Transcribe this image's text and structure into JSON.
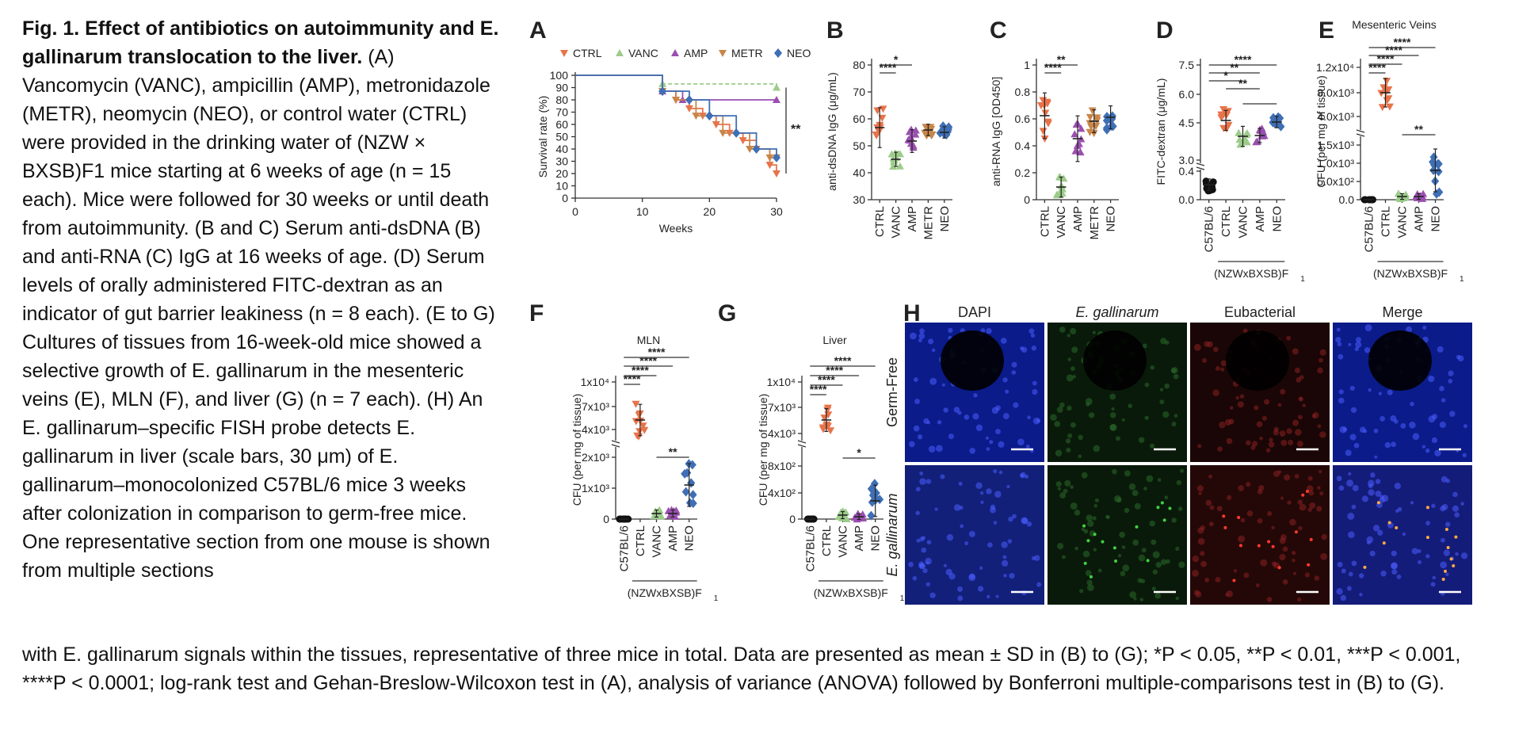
{
  "caption": {
    "title": "Fig. 1. Effect of antibiotics on autoimmunity and E. gallinarum translocation to the liver.",
    "body": "(A) Vancomycin (VANC), ampicillin (AMP), metronidazole (METR), neomycin (NEO), or control water (CTRL) were provided in the drinking water of (NZW × BXSB)F1 mice starting at 6 weeks of age (n = 15 each). Mice were followed for 30 weeks or until death from autoimmunity. (B and C) Serum anti-dsDNA (B) and anti-RNA (C) IgG at 16 weeks of age. (D) Serum levels of orally administered FITC-dextran as an indicator of gut barrier leakiness (n = 8 each). (E to G) Cultures of tissues from 16-week-old mice showed a selective growth of E. gallinarum in the mesenteric veins (E), MLN (F), and liver (G) (n = 7 each). (H) An E. gallinarum–specific FISH probe detects E. gallinarum in liver (scale bars, 30 μm) of E. gallinarum–monocolonized C57BL/6 mice 3 weeks after colonization in comparison to germ-free mice. One representative section from one mouse is shown from multiple sections",
    "bottom": "with E. gallinarum signals within the tissues, representative of three mice in total. Data are presented as mean ± SD in (B) to (G); *P < 0.05, **P < 0.01, ***P < 0.001, ****P < 0.0001; log-rank test and Gehan-Breslow-Wilcoxon test in (A), analysis of variance (ANOVA) followed by Bonferroni multiple-comparisons test in (B) to (G)."
  },
  "colors": {
    "CTRL": "#e8734a",
    "VANC": "#9ccc8a",
    "AMP": "#9b4fb0",
    "METR": "#c8864a",
    "NEO": "#3f6fb5"
  },
  "chart_data": [
    {
      "panel": "A",
      "type": "line",
      "xlabel": "Weeks",
      "ylabel": "Survival rate (%)",
      "xlim": [
        0,
        30
      ],
      "ylim": [
        0,
        100
      ],
      "xticks": [
        0,
        10,
        20,
        30
      ],
      "yticks": [
        0,
        10,
        20,
        30,
        40,
        50,
        60,
        70,
        80,
        90,
        100
      ],
      "annotation": "**",
      "series": [
        {
          "name": "CTRL",
          "x": [
            0,
            13,
            15,
            17,
            19,
            21,
            23,
            25,
            27,
            29,
            30
          ],
          "y": [
            100,
            87,
            80,
            73,
            67,
            60,
            53,
            47,
            40,
            27,
            20
          ]
        },
        {
          "name": "VANC",
          "x": [
            0,
            13,
            30
          ],
          "y": [
            100,
            93,
            90
          ]
        },
        {
          "name": "AMP",
          "x": [
            0,
            13,
            16,
            30
          ],
          "y": [
            100,
            87,
            80,
            80
          ]
        },
        {
          "name": "METR",
          "x": [
            0,
            13,
            15,
            18,
            22,
            26,
            29,
            30
          ],
          "y": [
            100,
            87,
            80,
            67,
            53,
            40,
            33,
            33
          ]
        },
        {
          "name": "NEO",
          "x": [
            0,
            13,
            17,
            20,
            24,
            27,
            30
          ],
          "y": [
            100,
            87,
            80,
            67,
            53,
            40,
            33
          ]
        }
      ]
    },
    {
      "panel": "B",
      "type": "scatter",
      "ylabel": "anti-dsDNA IgG (μg/mL)",
      "ylim": [
        30,
        80
      ],
      "yticks": [
        30,
        40,
        50,
        60,
        70,
        80
      ],
      "categories": [
        "CTRL",
        "VANC",
        "AMP",
        "METR",
        "NEO"
      ],
      "means": [
        56,
        43,
        50,
        55,
        54
      ],
      "sd": [
        9,
        3,
        5,
        2,
        2
      ],
      "significance": [
        "****",
        "*"
      ]
    },
    {
      "panel": "C",
      "type": "scatter",
      "ylabel": "anti-RNA IgG [OD450]",
      "ylim": [
        0,
        1.0
      ],
      "yticks": [
        0.0,
        0.2,
        0.4,
        0.6,
        0.8,
        1.0
      ],
      "categories": [
        "CTRL",
        "VANC",
        "AMP",
        "METR",
        "NEO"
      ],
      "means": [
        0.62,
        0.1,
        0.45,
        0.58,
        0.61
      ],
      "sd": [
        0.17,
        0.08,
        0.17,
        0.1,
        0.1
      ],
      "significance": [
        "****",
        "**"
      ]
    },
    {
      "panel": "D",
      "type": "scatter",
      "ylabel": "FITC-dextran (μg/mL)",
      "ylim": [
        0,
        7.5
      ],
      "yticks": [
        "0.0",
        "0.4",
        "3.0",
        "4.5",
        "6.0",
        "7.5"
      ],
      "categories": [
        "C57BL/6",
        "CTRL",
        "VANC",
        "AMP",
        "NEO"
      ],
      "group_label": "(NZWxBXSB)F1",
      "means": [
        0.15,
        5.0,
        4.1,
        4.2,
        4.6
      ],
      "sd": [
        0.1,
        0.6,
        0.5,
        0.4,
        0.2
      ],
      "significance": [
        "****",
        "**",
        "*",
        "**"
      ]
    },
    {
      "panel": "E",
      "type": "scatter",
      "title": "Mesenteric Veins",
      "ylabel": "CFU (per mg of tissue)",
      "yticks": [
        "0.0",
        "5.0x10²",
        "1.0x10³",
        "1.5x10³",
        "4.0x10³",
        "8.0x10³",
        "1.2x10⁴"
      ],
      "categories": [
        "C57BL/6",
        "CTRL",
        "VANC",
        "AMP",
        "NEO"
      ],
      "group_label": "(NZWxBXSB)F1",
      "means": [
        0,
        8000,
        100,
        100,
        700
      ],
      "significance": [
        "****",
        "****",
        "****",
        "****",
        "**"
      ]
    },
    {
      "panel": "F",
      "type": "scatter",
      "title": "MLN",
      "ylabel": "CFU (per mg of tissue)",
      "yticks": [
        "0",
        "1x10³",
        "2x10³",
        "4x10³",
        "7x10³",
        "1x10⁴"
      ],
      "categories": [
        "C57BL/6",
        "CTRL",
        "VANC",
        "AMP",
        "NEO"
      ],
      "group_label": "(NZWxBXSB)F1",
      "means": [
        0,
        6500,
        80,
        80,
        1000
      ],
      "significance": [
        "****",
        "****",
        "****",
        "****",
        "**"
      ]
    },
    {
      "panel": "G",
      "type": "scatter",
      "title": "Liver",
      "ylabel": "CFU (per mg of tissue)",
      "yticks": [
        "0",
        "4x10²",
        "8x10²",
        "4x10³",
        "7x10³",
        "1x10⁴"
      ],
      "categories": [
        "C57BL/6",
        "CTRL",
        "VANC",
        "AMP",
        "NEO"
      ],
      "group_label": "(NZWxBXSB)F1",
      "means": [
        0,
        6000,
        80,
        40,
        350
      ],
      "significance": [
        "****",
        "****",
        "****",
        "****",
        "*"
      ]
    }
  ],
  "panelH": {
    "columns": [
      "DAPI",
      "E. gallinarum",
      "Eubacterial",
      "Merge"
    ],
    "rows": [
      "Germ-Free",
      "E. gallinarum"
    ]
  },
  "letters": [
    "A",
    "B",
    "C",
    "D",
    "E",
    "F",
    "G",
    "H"
  ]
}
